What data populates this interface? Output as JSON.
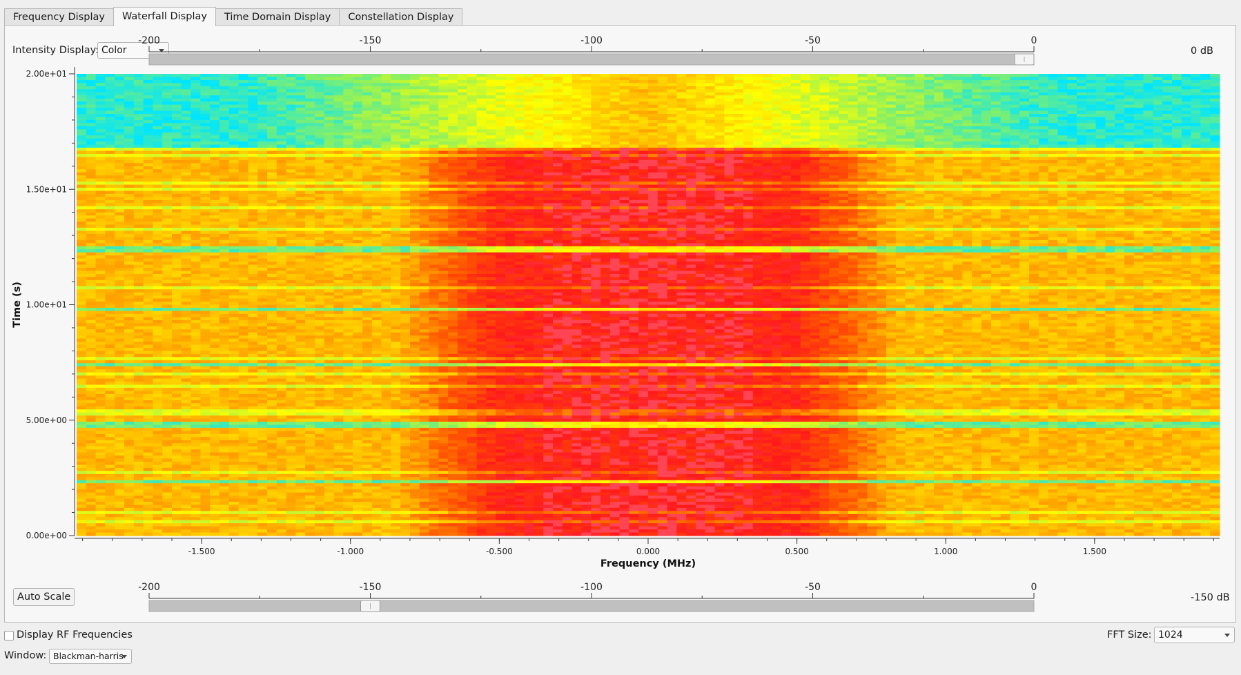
{
  "tabs": [
    {
      "label": "Frequency Display",
      "active": false
    },
    {
      "label": "Waterfall Display",
      "active": true
    },
    {
      "label": "Time Domain Display",
      "active": false
    },
    {
      "label": "Constellation Display",
      "active": false
    }
  ],
  "intensity": {
    "label": "Intensity Display:",
    "value": "Color"
  },
  "scale_ticks": [
    "-200",
    "-150",
    "-100",
    "-50",
    "0"
  ],
  "upper_slider": {
    "value_label": "0 dB",
    "value": 0
  },
  "lower_slider": {
    "value_label": "-150 dB",
    "value": -150
  },
  "slider_range": [
    -200,
    0
  ],
  "auto_scale_label": "Auto Scale",
  "display_rf": {
    "label": "Display RF Frequencies",
    "checked": false
  },
  "fft": {
    "label": "FFT Size:",
    "value": "1024"
  },
  "window": {
    "label": "Window:",
    "value": "Blackman-harris"
  },
  "chart_data": {
    "type": "heatmap",
    "xlabel": "Frequency (MHz)",
    "ylabel": "Time (s)",
    "xlim": [
      -1.92,
      1.92
    ],
    "ylim": [
      0,
      20
    ],
    "x_ticks": [
      "-1.500",
      "-1.000",
      "-0.500",
      "0.000",
      "0.500",
      "1.000",
      "1.500"
    ],
    "x_tick_values": [
      -1.5,
      -1.0,
      -0.5,
      0.0,
      0.5,
      1.0,
      1.5
    ],
    "y_ticks": [
      "0.00e+00",
      "5.00e+00",
      "1.00e+01",
      "1.50e+01",
      "2.00e+01"
    ],
    "y_tick_values": [
      0,
      5,
      10,
      15,
      20
    ],
    "colormap": [
      "#00e5ff",
      "#8cf060",
      "#ffff00",
      "#ffb000",
      "#ff5a00",
      "#ff1a1a",
      "#ff6a8a"
    ],
    "description_bands": {
      "quiet_top_rows_s": [
        16.8,
        20.0
      ],
      "occupied_band_MHz": [
        -0.75,
        0.75
      ],
      "noise_floor_gap_rows_s": [
        2.3,
        4.8,
        7.4,
        9.8,
        12.4
      ]
    }
  }
}
